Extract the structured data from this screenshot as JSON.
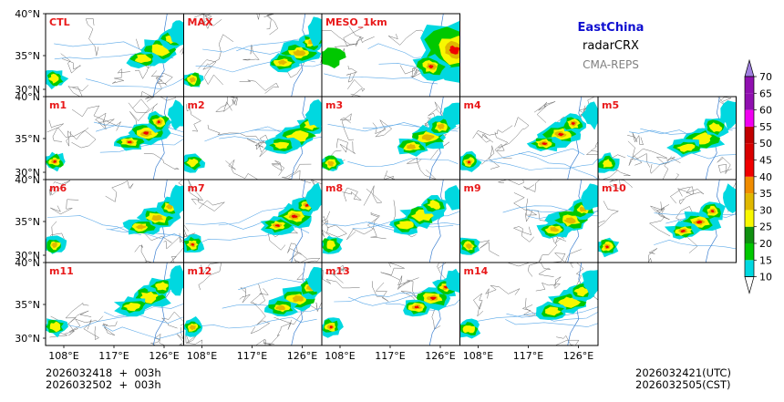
{
  "title": {
    "region": "EastChina",
    "variable": "radarCRX",
    "system": "CMA-REPS",
    "region_color": "#1010d0",
    "system_color": "#808080"
  },
  "lat_labels": [
    "40°N",
    "35°N",
    "30°N"
  ],
  "lon_labels": [
    "108°E",
    "117°E",
    "126°E"
  ],
  "rows": [
    [
      "CTL",
      "MAX",
      "MESO_1km"
    ],
    [
      "m1",
      "m2",
      "m3",
      "m4",
      "m5"
    ],
    [
      "m6",
      "m7",
      "m8",
      "m9",
      "m10"
    ],
    [
      "m11",
      "m12",
      "m13",
      "m14"
    ]
  ],
  "colorbar": {
    "levels": [
      "10",
      "15",
      "20",
      "25",
      "30",
      "35",
      "40",
      "45",
      "50",
      "55",
      "60",
      "65",
      "70"
    ],
    "colors": [
      "#1a9ff0",
      "#00d8e0",
      "#00c800",
      "#109010",
      "#f8f800",
      "#e0b800",
      "#f08c00",
      "#f00000",
      "#d80000",
      "#c00000",
      "#f000f0",
      "#9010b0",
      "#a080e0"
    ]
  },
  "init_time": {
    "utc": "2026032418  +  003h",
    "cst": "2026032502  +  003h"
  },
  "valid_time": {
    "utc": "2026032421(UTC)",
    "cst": "2026032505(CST)"
  }
}
